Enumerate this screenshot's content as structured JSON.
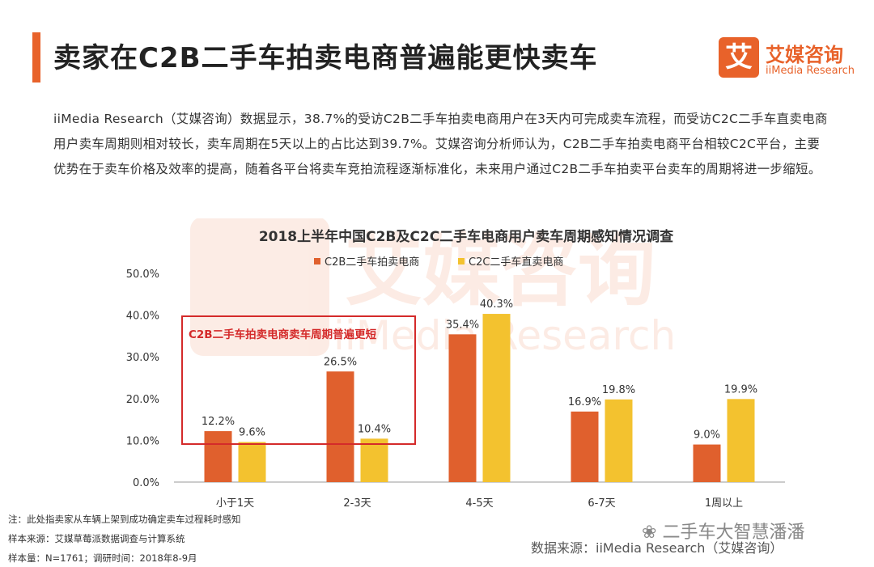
{
  "header": {
    "title": "卖家在C2B二手车拍卖电商普遍能更快卖车",
    "logo_mark": "艾",
    "logo_cn": "艾媒咨询",
    "logo_en": "iiMedia Research"
  },
  "intro": "iiMedia Research（艾媒咨询）数据显示，38.7%的受访C2B二手车拍卖电商用户在3天内可完成卖车流程，而受访C2C二手车直卖电商用户卖车周期则相对较长，卖车周期在5天以上的占比达到39.7%。艾媒咨询分析师认为，C2B二手车拍卖电商平台相较C2C平台，主要优势在于卖车价格及效率的提高，随着各平台将卖车竞拍流程逐渐标准化，未来用户通过C2B二手车拍卖平台卖车的周期将进一步缩短。",
  "chart_data": {
    "type": "bar",
    "title": "2018上半年中国C2B及C2C二手车电商用户卖车周期感知情况调查",
    "categories": [
      "小于1天",
      "2-3天",
      "4-5天",
      "6-7天",
      "1周以上"
    ],
    "series": [
      {
        "name": "C2B二手车拍卖电商",
        "values": [
          12.2,
          26.5,
          35.4,
          16.9,
          9.0
        ],
        "labels": [
          "12.2%",
          "26.5%",
          "35.4%",
          "16.9%",
          "9.0%"
        ],
        "color": "#e0602d"
      },
      {
        "name": "C2C二手车直卖电商",
        "values": [
          9.6,
          10.4,
          40.3,
          19.8,
          19.9
        ],
        "labels": [
          "9.6%",
          "10.4%",
          "40.3%",
          "19.8%",
          "19.9%"
        ],
        "color": "#f3c22f"
      }
    ],
    "ylim": [
      0,
      50
    ],
    "yticks": [
      "0.0%",
      "10.0%",
      "20.0%",
      "30.0%",
      "40.0%",
      "50.0%"
    ],
    "legend_position": "top",
    "grid": false,
    "annotation": "C2B二手车拍卖电商卖车周期普遍更短",
    "annotation_color": "#d42a2a"
  },
  "watermark": {
    "cn": "艾媒咨询",
    "en": "iiMedia Research"
  },
  "footer": {
    "note": "注：此处指卖家从车辆上架到成功确定卖车过程耗时感知",
    "sample_source": "样本来源：艾媒草莓派数据调查与计算系统",
    "sample_size": "样本量：N=1761；调研时间：2018年8-9月",
    "data_source": "数据来源：iiMedia Research（艾媒咨询）",
    "wechat": "二手车大智慧潘潘"
  }
}
